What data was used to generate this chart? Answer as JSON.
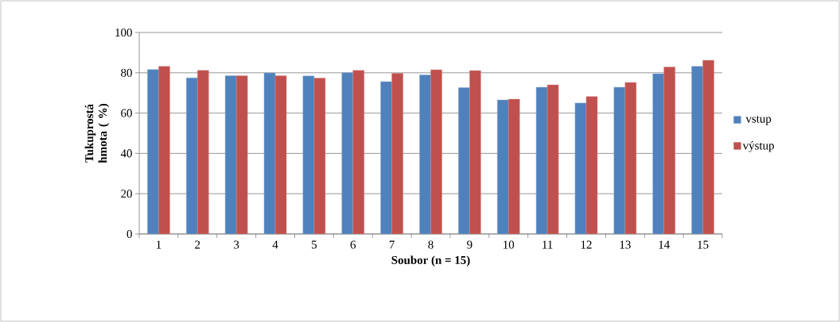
{
  "chart_data": {
    "type": "bar",
    "xlabel": "Soubor (n = 15)",
    "ylabel": "Tukuprostá hmota ( %)",
    "categories": [
      "1",
      "2",
      "3",
      "4",
      "5",
      "6",
      "7",
      "8",
      "9",
      "10",
      "11",
      "12",
      "13",
      "14",
      "15"
    ],
    "series": [
      {
        "name": "vstup",
        "color": "#4f81bd",
        "values": [
          81.6,
          77.5,
          78.5,
          79.9,
          78.4,
          80.0,
          75.6,
          78.9,
          72.6,
          66.5,
          72.8,
          65.0,
          72.8,
          79.5,
          83.2
        ]
      },
      {
        "name": "výstup",
        "color": "#c0504d",
        "values": [
          83.2,
          81.2,
          78.5,
          78.5,
          77.4,
          81.2,
          79.7,
          81.5,
          81.1,
          66.9,
          74.0,
          68.2,
          75.2,
          82.9,
          86.2
        ]
      }
    ],
    "ylim": [
      0,
      100
    ],
    "yticks": [
      0,
      20,
      40,
      60,
      80,
      100
    ],
    "grid": "y",
    "legend": "right"
  }
}
